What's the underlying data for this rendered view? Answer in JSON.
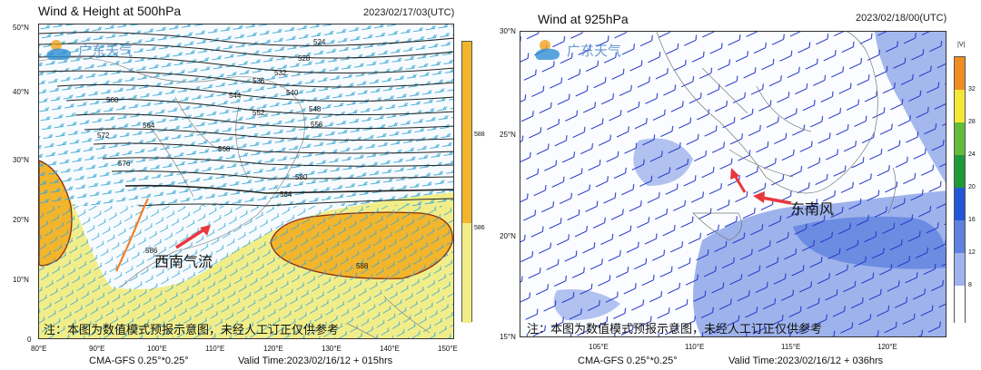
{
  "panels": [
    {
      "title": "Wind & Height at 500hPa",
      "date": "2023/02/17/03(UTC)",
      "model": "CMA-GFS  0.25°*0.25°",
      "valid": "Valid Time:2023/02/16/12 + 015hrs",
      "note": "注：本图为数值模式预报示意图，未经人工订正仅供参考",
      "logo": "广东天气",
      "annotation": "西南气流",
      "lon_ticks": [
        "80°E",
        "90°E",
        "100°E",
        "110°E",
        "120°E",
        "130°E",
        "140°E",
        "150°E"
      ],
      "lat_ticks": [
        "50°N",
        "40°N",
        "30°N",
        "20°N",
        "10°N",
        "0"
      ],
      "colorbar_ticks": [
        "588",
        "586"
      ],
      "contour_labels": [
        "524",
        "528",
        "532",
        "536",
        "540",
        "544",
        "548",
        "552",
        "556",
        "560",
        "564",
        "568",
        "572",
        "576",
        "580",
        "584",
        "586",
        "588"
      ],
      "colors": {
        "shade_586": "#f1ee8a",
        "shade_588": "#f2b52c",
        "wind": "#3fa9d6",
        "arrow": "#e8383d"
      }
    },
    {
      "title": "Wind at 925hPa",
      "date": "2023/02/18/00(UTC)",
      "model": "CMA-GFS  0.25°*0.25°",
      "valid": "Valid Time:2023/02/16/12 + 036hrs",
      "note": "注：本图为数值模式预报示意图，未经人工订正仅供参考",
      "logo": "广东天气",
      "annotation": "东南风",
      "unit": "|V|",
      "lon_ticks": [
        "105°E",
        "110°E",
        "115°E",
        "120°E"
      ],
      "lat_ticks": [
        "30°N",
        "25°N",
        "20°N",
        "15°N"
      ],
      "colorbar_ticks": [
        "32",
        "28",
        "24",
        "20",
        "16",
        "12",
        "8"
      ],
      "colorbar_colors": [
        "#ef8d22",
        "#f4e837",
        "#63bb3a",
        "#1e9a39",
        "#2257d8",
        "#5f82e0",
        "#9fb3ec",
        "#ffffff"
      ],
      "colors": {
        "barb": "#2436c8",
        "shade": "#7f9be6",
        "arrow": "#e8383d"
      }
    }
  ]
}
